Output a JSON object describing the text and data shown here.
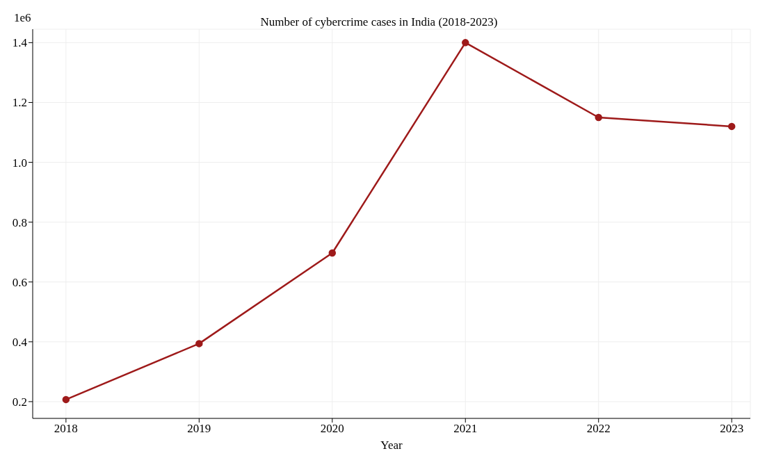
{
  "chart_data": {
    "type": "line",
    "title": "Number of cybercrime cases in India (2018-2023)",
    "xlabel": "Year",
    "ylabel": "1e6",
    "x": [
      2018,
      2019,
      2020,
      2021,
      2022,
      2023
    ],
    "series": [
      {
        "color": "#9e1a1a",
        "values": [
          0.207,
          0.394,
          0.697,
          1.4,
          1.15,
          1.12
        ]
      }
    ],
    "xlim": [
      2017.75,
      2023.14
    ],
    "xticks": [
      2018,
      2019,
      2020,
      2021,
      2022,
      2023
    ],
    "ylim": [
      0.144,
      1.445
    ],
    "yticks": [
      0.2,
      0.4,
      0.6,
      0.8,
      {
        "value": 1,
        "label": "1.0"
      },
      1.2,
      1.4
    ],
    "grid": true,
    "marker": "circle",
    "line_style": "solid"
  }
}
